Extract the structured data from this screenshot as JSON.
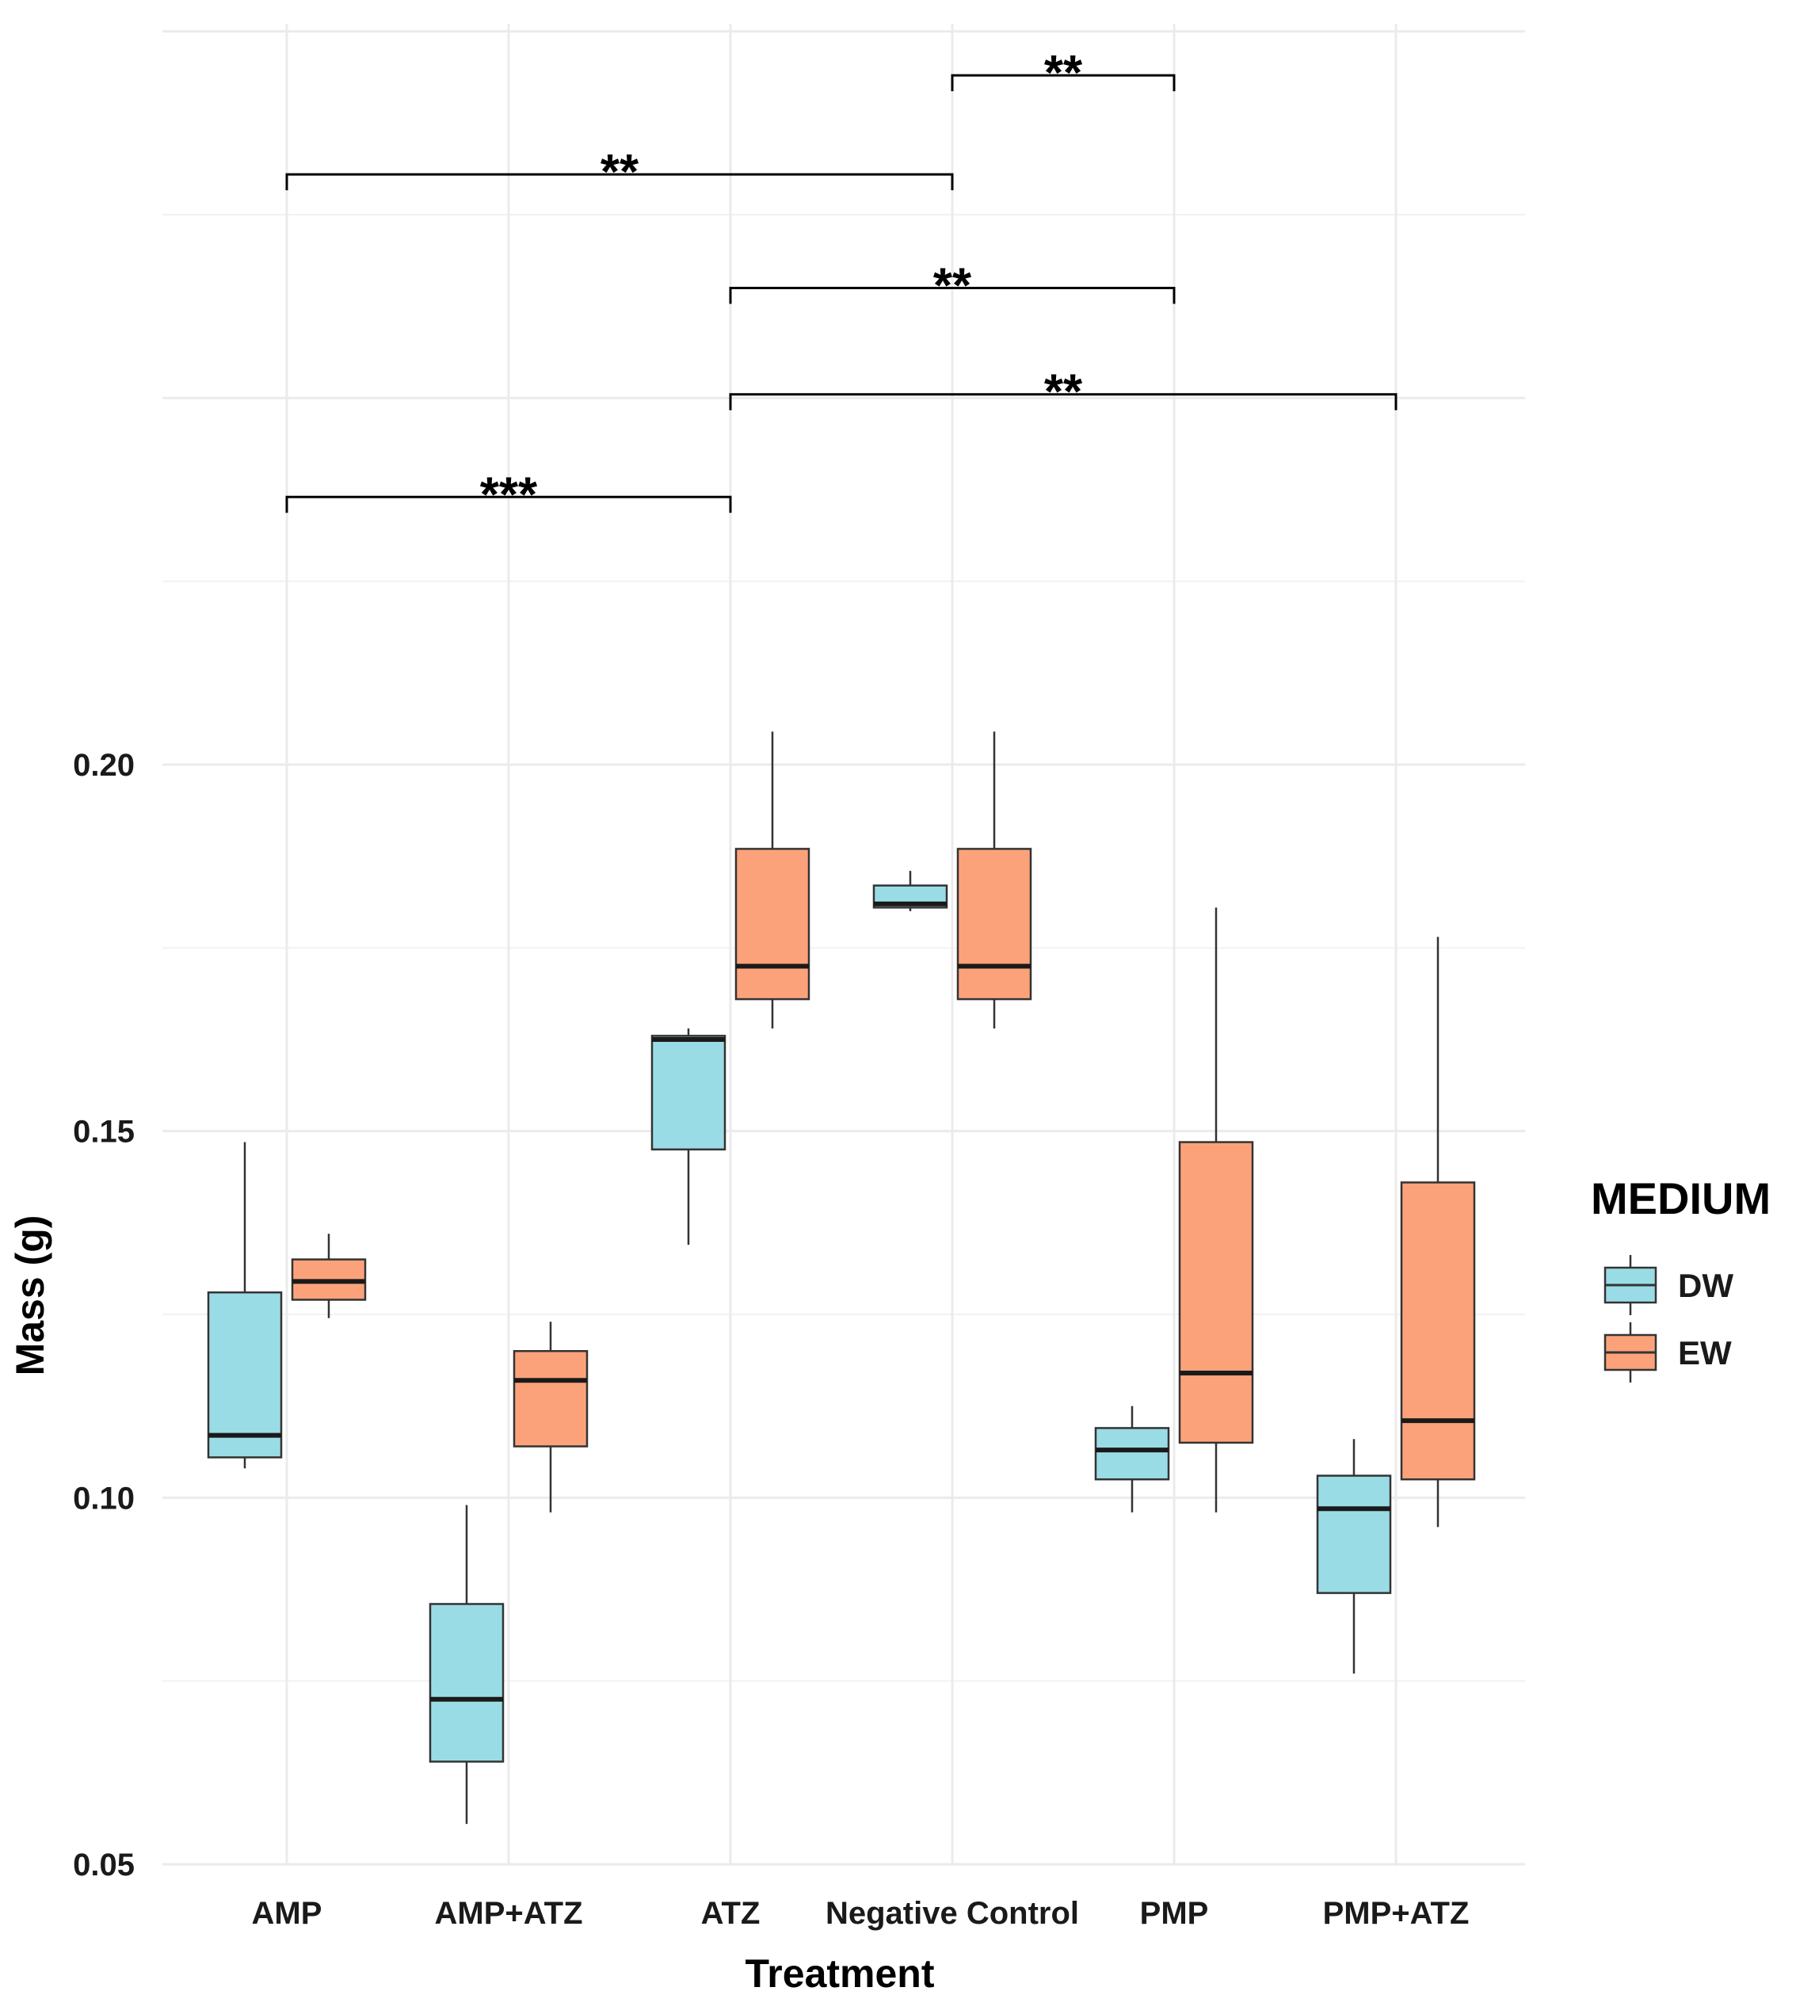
{
  "chart_data": {
    "type": "boxplot",
    "title": "",
    "xlabel": "Treatment",
    "ylabel": "Mass (g)",
    "y_ticks": [
      "0.05",
      "0.10",
      "0.15",
      "0.20"
    ],
    "y_tick_values": [
      0.05,
      0.1,
      0.15,
      0.2
    ],
    "ylim": [
      0.046,
      0.3
    ],
    "categories": [
      "AMP",
      "AMP+ATZ",
      "ATZ",
      "Negative Control",
      "PMP",
      "PMP+ATZ"
    ],
    "legend": {
      "title": "MEDIUM",
      "position": "right",
      "entries": [
        {
          "key": "DW",
          "label": "DW",
          "color": "#9ADCE6"
        },
        {
          "key": "EW",
          "label": "EW",
          "color": "#FCA27A"
        }
      ]
    },
    "series": [
      {
        "name": "DW",
        "color": "#9ADCE6",
        "boxes": [
          {
            "category": "AMP",
            "whisker_low": 0.104,
            "q1": 0.1055,
            "median": 0.1085,
            "q3": 0.128,
            "whisker_high": 0.1485
          },
          {
            "category": "AMP+ATZ",
            "whisker_low": 0.0555,
            "q1": 0.064,
            "median": 0.0725,
            "q3": 0.0855,
            "whisker_high": 0.099
          },
          {
            "category": "ATZ",
            "whisker_low": 0.1345,
            "q1": 0.1475,
            "median": 0.1625,
            "q3": 0.163,
            "whisker_high": 0.164
          },
          {
            "category": "Negative Control",
            "whisker_low": 0.18,
            "q1": 0.1805,
            "median": 0.181,
            "q3": 0.1835,
            "whisker_high": 0.1855
          },
          {
            "category": "PMP",
            "whisker_low": 0.098,
            "q1": 0.1025,
            "median": 0.1065,
            "q3": 0.1095,
            "whisker_high": 0.1125
          },
          {
            "category": "PMP+ATZ",
            "whisker_low": 0.076,
            "q1": 0.087,
            "median": 0.0985,
            "q3": 0.103,
            "whisker_high": 0.108
          }
        ]
      },
      {
        "name": "EW",
        "color": "#FCA27A",
        "boxes": [
          {
            "category": "AMP",
            "whisker_low": 0.1245,
            "q1": 0.127,
            "median": 0.1295,
            "q3": 0.1325,
            "whisker_high": 0.136
          },
          {
            "category": "AMP+ATZ",
            "whisker_low": 0.098,
            "q1": 0.107,
            "median": 0.116,
            "q3": 0.12,
            "whisker_high": 0.124
          },
          {
            "category": "ATZ",
            "whisker_low": 0.164,
            "q1": 0.168,
            "median": 0.1725,
            "q3": 0.1885,
            "whisker_high": 0.2045
          },
          {
            "category": "Negative Control",
            "whisker_low": 0.164,
            "q1": 0.168,
            "median": 0.1725,
            "q3": 0.1885,
            "whisker_high": 0.2045
          },
          {
            "category": "PMP",
            "whisker_low": 0.098,
            "q1": 0.1075,
            "median": 0.117,
            "q3": 0.1485,
            "whisker_high": 0.1805
          },
          {
            "category": "PMP+ATZ",
            "whisker_low": 0.096,
            "q1": 0.1025,
            "median": 0.1105,
            "q3": 0.143,
            "whisker_high": 0.1765
          }
        ]
      }
    ],
    "significance": [
      {
        "from": "Negative Control",
        "to": "PMP",
        "level": 0.294,
        "label": "**"
      },
      {
        "from": "AMP",
        "to": "Negative Control",
        "level": 0.2805,
        "label": "**"
      },
      {
        "from": "ATZ",
        "to": "PMP",
        "level": 0.265,
        "label": "**"
      },
      {
        "from": "ATZ",
        "to": "PMP+ATZ",
        "level": 0.2505,
        "label": "**"
      },
      {
        "from": "AMP",
        "to": "ATZ",
        "level": 0.2365,
        "label": "***"
      }
    ]
  }
}
